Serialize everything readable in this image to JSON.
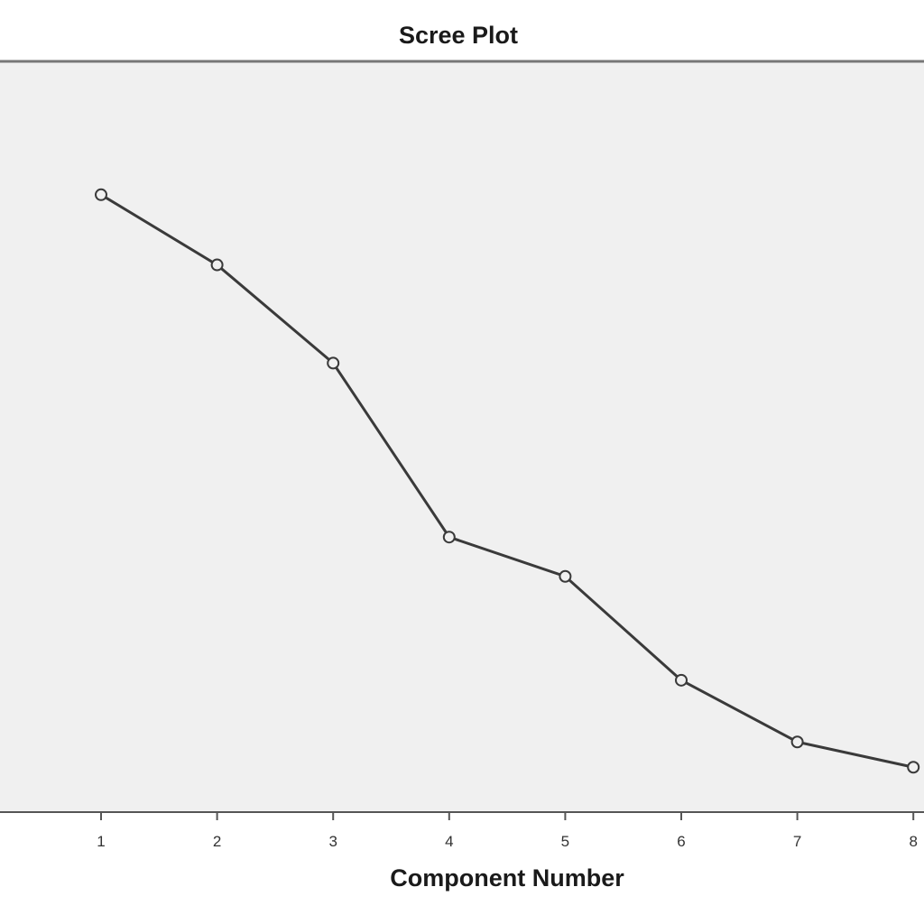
{
  "chart_data": {
    "type": "line",
    "title": "Scree Plot",
    "xlabel": "Component Number",
    "ylabel": "",
    "x": [
      1,
      2,
      3,
      4,
      5,
      6,
      7,
      8
    ],
    "categories": [
      "1",
      "2",
      "3",
      "4",
      "5",
      "6",
      "7",
      "8"
    ],
    "series": [
      {
        "values": [
          2.2,
          1.95,
          1.6,
          0.98,
          0.84,
          0.47,
          0.25,
          0.16
        ]
      }
    ],
    "xlim": [
      0.5,
      8.5
    ],
    "ylim": [
      0,
      2.7
    ],
    "grid": false,
    "colors": {
      "plot_background": "#f0f0f0",
      "line": "#3a3a3a",
      "axis": "#555555"
    }
  }
}
